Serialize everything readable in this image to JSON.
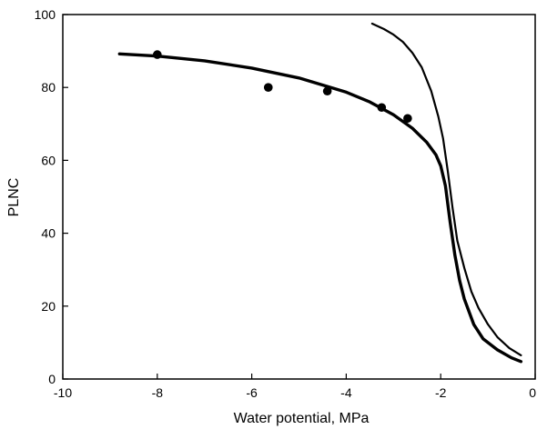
{
  "chart_data": {
    "type": "scatter",
    "title": "",
    "xlabel": "Water potential, MPa",
    "ylabel": "PLNC",
    "xlim": [
      -10,
      0
    ],
    "ylim": [
      0,
      100
    ],
    "x_ticks": [
      "-10",
      "-8",
      "-6",
      "-4",
      "-2",
      "0"
    ],
    "y_ticks": [
      "0",
      "20",
      "40",
      "60",
      "80",
      "100"
    ],
    "grid": false,
    "legend": "none",
    "series": [
      {
        "type": "scatter",
        "marker": "filled-circle",
        "color": "#000000",
        "points": [
          {
            "x": -8.0,
            "y": 89
          },
          {
            "x": -5.65,
            "y": 80
          },
          {
            "x": -4.4,
            "y": 79
          },
          {
            "x": -3.25,
            "y": 74.5
          },
          {
            "x": -2.7,
            "y": 71.5
          }
        ]
      },
      {
        "type": "line",
        "style": "thick",
        "color": "#000000",
        "points": [
          {
            "x": -8.8,
            "y": 89.2
          },
          {
            "x": -8.0,
            "y": 88.6
          },
          {
            "x": -7.0,
            "y": 87.3
          },
          {
            "x": -6.0,
            "y": 85.3
          },
          {
            "x": -5.0,
            "y": 82.6
          },
          {
            "x": -4.0,
            "y": 78.7
          },
          {
            "x": -3.5,
            "y": 76.0
          },
          {
            "x": -3.0,
            "y": 72.5
          },
          {
            "x": -2.6,
            "y": 68.8
          },
          {
            "x": -2.3,
            "y": 65.0
          },
          {
            "x": -2.1,
            "y": 61.5
          },
          {
            "x": -2.0,
            "y": 58.5
          },
          {
            "x": -1.9,
            "y": 53.0
          },
          {
            "x": -1.8,
            "y": 43.0
          },
          {
            "x": -1.7,
            "y": 34.0
          },
          {
            "x": -1.6,
            "y": 27.0
          },
          {
            "x": -1.5,
            "y": 22.0
          },
          {
            "x": -1.3,
            "y": 15.0
          },
          {
            "x": -1.1,
            "y": 11.0
          },
          {
            "x": -0.8,
            "y": 8.0
          },
          {
            "x": -0.5,
            "y": 5.8
          },
          {
            "x": -0.3,
            "y": 4.8
          }
        ]
      },
      {
        "type": "line",
        "style": "thin",
        "color": "#000000",
        "points": [
          {
            "x": -3.45,
            "y": 97.5
          },
          {
            "x": -3.2,
            "y": 96.0
          },
          {
            "x": -3.0,
            "y": 94.5
          },
          {
            "x": -2.8,
            "y": 92.5
          },
          {
            "x": -2.6,
            "y": 89.5
          },
          {
            "x": -2.4,
            "y": 85.5
          },
          {
            "x": -2.2,
            "y": 79.0
          },
          {
            "x": -2.05,
            "y": 72.0
          },
          {
            "x": -1.95,
            "y": 66.0
          },
          {
            "x": -1.85,
            "y": 57.0
          },
          {
            "x": -1.75,
            "y": 47.0
          },
          {
            "x": -1.65,
            "y": 38.0
          },
          {
            "x": -1.5,
            "y": 30.5
          },
          {
            "x": -1.35,
            "y": 24.0
          },
          {
            "x": -1.2,
            "y": 19.5
          },
          {
            "x": -1.0,
            "y": 15.0
          },
          {
            "x": -0.8,
            "y": 11.5
          },
          {
            "x": -0.55,
            "y": 8.5
          },
          {
            "x": -0.3,
            "y": 6.5
          }
        ]
      }
    ]
  }
}
